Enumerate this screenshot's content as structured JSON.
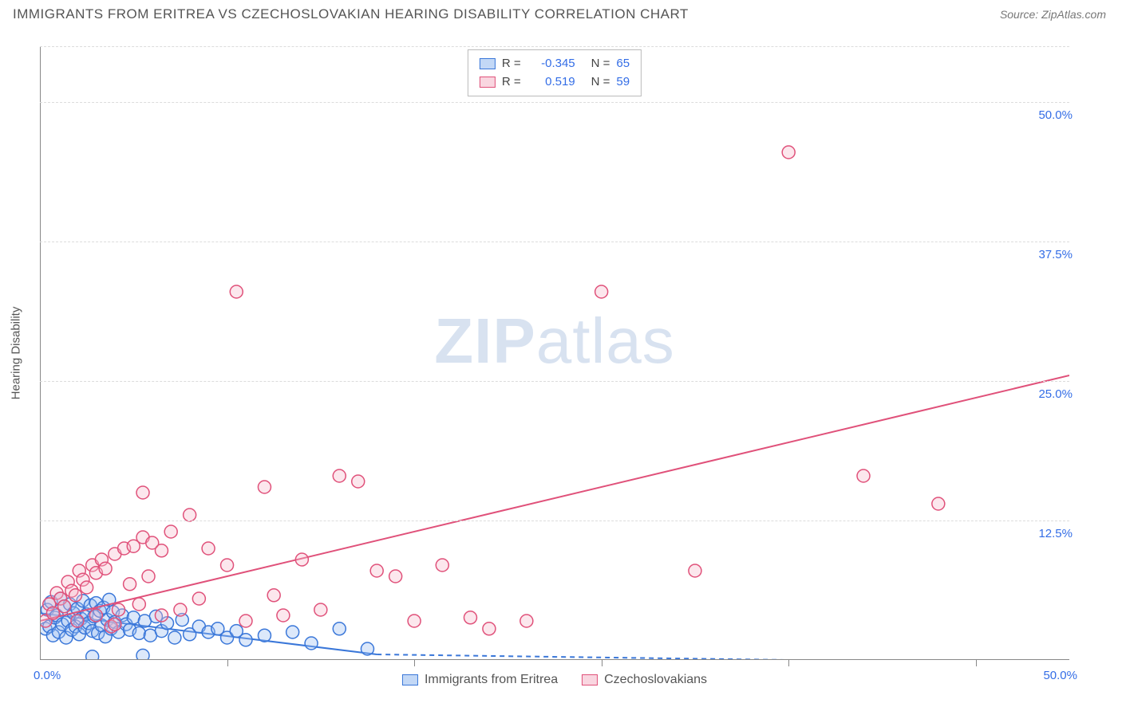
{
  "header": {
    "title": "IMMIGRANTS FROM ERITREA VS CZECHOSLOVAKIAN HEARING DISABILITY CORRELATION CHART",
    "source_label": "Source:",
    "source_value": "ZipAtlas.com"
  },
  "chart": {
    "type": "scatter",
    "ylabel": "Hearing Disability",
    "watermark": {
      "bold": "ZIP",
      "rest": "atlas"
    },
    "background_color": "#ffffff",
    "grid_color": "#dcdcdc",
    "axis_color": "#888888",
    "tick_label_color": "#336de6",
    "text_color": "#555555",
    "xlim": [
      0,
      55
    ],
    "ylim": [
      0,
      55
    ],
    "y_ticks": [
      {
        "v": 12.5,
        "label": "12.5%"
      },
      {
        "v": 25.0,
        "label": "25.0%"
      },
      {
        "v": 37.5,
        "label": "37.5%"
      },
      {
        "v": 50.0,
        "label": "50.0%"
      }
    ],
    "x_tick_marks": [
      10,
      20,
      30,
      40,
      50
    ],
    "x_origin_label": "0.0%",
    "x_max_label": "50.0%",
    "marker_radius": 8,
    "marker_stroke_width": 1.5,
    "marker_fill_opacity": 0.35,
    "line_width": 2,
    "series": [
      {
        "name": "Immigrants from Eritrea",
        "color_stroke": "#3a77d9",
        "color_fill": "#9bbef0",
        "r_value": "-0.345",
        "n_value": "65",
        "trend": {
          "x1": 0,
          "y1": 4.2,
          "x2": 18,
          "y2": 0.5,
          "dashed_after_x": 18,
          "x2_dash": 40
        },
        "points": [
          [
            0.3,
            2.8
          ],
          [
            0.4,
            4.5
          ],
          [
            0.5,
            3.0
          ],
          [
            0.6,
            5.2
          ],
          [
            0.7,
            2.2
          ],
          [
            0.8,
            3.8
          ],
          [
            0.9,
            4.0
          ],
          [
            1.0,
            2.5
          ],
          [
            1.1,
            5.5
          ],
          [
            1.2,
            3.2
          ],
          [
            1.3,
            4.8
          ],
          [
            1.4,
            2.0
          ],
          [
            1.5,
            3.5
          ],
          [
            1.6,
            5.0
          ],
          [
            1.7,
            2.7
          ],
          [
            1.8,
            4.2
          ],
          [
            1.9,
            3.0
          ],
          [
            2.0,
            4.6
          ],
          [
            2.1,
            2.3
          ],
          [
            2.2,
            3.7
          ],
          [
            2.3,
            5.3
          ],
          [
            2.4,
            2.9
          ],
          [
            2.5,
            4.1
          ],
          [
            2.6,
            3.3
          ],
          [
            2.7,
            4.9
          ],
          [
            2.8,
            2.6
          ],
          [
            2.9,
            3.9
          ],
          [
            3.0,
            5.1
          ],
          [
            3.1,
            2.4
          ],
          [
            3.2,
            4.4
          ],
          [
            3.3,
            3.1
          ],
          [
            3.4,
            4.7
          ],
          [
            3.5,
            2.1
          ],
          [
            3.6,
            3.6
          ],
          [
            3.7,
            5.4
          ],
          [
            3.8,
            2.8
          ],
          [
            3.9,
            4.3
          ],
          [
            4.0,
            3.4
          ],
          [
            4.2,
            2.5
          ],
          [
            4.4,
            4.0
          ],
          [
            4.6,
            3.2
          ],
          [
            4.8,
            2.7
          ],
          [
            5.0,
            3.8
          ],
          [
            5.3,
            2.4
          ],
          [
            5.6,
            3.5
          ],
          [
            5.9,
            2.2
          ],
          [
            6.2,
            3.9
          ],
          [
            6.5,
            2.6
          ],
          [
            6.8,
            3.3
          ],
          [
            7.2,
            2.0
          ],
          [
            7.6,
            3.6
          ],
          [
            8.0,
            2.3
          ],
          [
            8.5,
            3.0
          ],
          [
            9.0,
            2.5
          ],
          [
            9.5,
            2.8
          ],
          [
            10.0,
            2.0
          ],
          [
            10.5,
            2.6
          ],
          [
            11.0,
            1.8
          ],
          [
            12.0,
            2.2
          ],
          [
            13.5,
            2.5
          ],
          [
            14.5,
            1.5
          ],
          [
            16.0,
            2.8
          ],
          [
            17.5,
            1.0
          ],
          [
            2.8,
            0.3
          ],
          [
            5.5,
            0.4
          ]
        ]
      },
      {
        "name": "Czechoslovakians",
        "color_stroke": "#e0517a",
        "color_fill": "#f5bacb",
        "r_value": "0.519",
        "n_value": "59",
        "trend": {
          "x1": 0,
          "y1": 3.5,
          "x2": 55,
          "y2": 25.5,
          "dashed_after_x": 999
        },
        "points": [
          [
            0.3,
            3.5
          ],
          [
            0.5,
            5.0
          ],
          [
            0.7,
            4.2
          ],
          [
            0.9,
            6.0
          ],
          [
            1.1,
            5.5
          ],
          [
            1.3,
            4.8
          ],
          [
            1.5,
            7.0
          ],
          [
            1.7,
            6.2
          ],
          [
            1.9,
            5.8
          ],
          [
            2.1,
            8.0
          ],
          [
            2.3,
            7.2
          ],
          [
            2.5,
            6.5
          ],
          [
            2.8,
            8.5
          ],
          [
            3.0,
            7.8
          ],
          [
            3.3,
            9.0
          ],
          [
            3.5,
            8.2
          ],
          [
            3.8,
            3.0
          ],
          [
            4.0,
            9.5
          ],
          [
            4.2,
            4.5
          ],
          [
            4.5,
            10.0
          ],
          [
            4.8,
            6.8
          ],
          [
            5.0,
            10.2
          ],
          [
            5.3,
            5.0
          ],
          [
            5.5,
            11.0
          ],
          [
            5.8,
            7.5
          ],
          [
            6.0,
            10.5
          ],
          [
            6.5,
            9.8
          ],
          [
            7.0,
            11.5
          ],
          [
            7.5,
            4.5
          ],
          [
            8.0,
            13.0
          ],
          [
            9.0,
            10.0
          ],
          [
            10.0,
            8.5
          ],
          [
            11.0,
            3.5
          ],
          [
            12.0,
            15.5
          ],
          [
            13.0,
            4.0
          ],
          [
            14.0,
            9.0
          ],
          [
            15.0,
            4.5
          ],
          [
            16.0,
            16.5
          ],
          [
            17.0,
            16.0
          ],
          [
            18.0,
            8.0
          ],
          [
            19.0,
            7.5
          ],
          [
            20.0,
            3.5
          ],
          [
            21.5,
            8.5
          ],
          [
            23.0,
            3.8
          ],
          [
            24.0,
            2.8
          ],
          [
            26.0,
            3.5
          ],
          [
            30.0,
            33.0
          ],
          [
            35.0,
            8.0
          ],
          [
            40.0,
            45.5
          ],
          [
            44.0,
            16.5
          ],
          [
            48.0,
            14.0
          ],
          [
            10.5,
            33.0
          ],
          [
            6.5,
            4.0
          ],
          [
            5.5,
            15.0
          ],
          [
            4.0,
            3.2
          ],
          [
            8.5,
            5.5
          ],
          [
            12.5,
            5.8
          ],
          [
            3.0,
            4.0
          ],
          [
            2.0,
            3.5
          ]
        ]
      }
    ],
    "legend_bottom": [
      {
        "label": "Immigrants from Eritrea",
        "stroke": "#3a77d9",
        "fill": "#9bbef0"
      },
      {
        "label": "Czechoslovakians",
        "stroke": "#e0517a",
        "fill": "#f5bacb"
      }
    ]
  }
}
